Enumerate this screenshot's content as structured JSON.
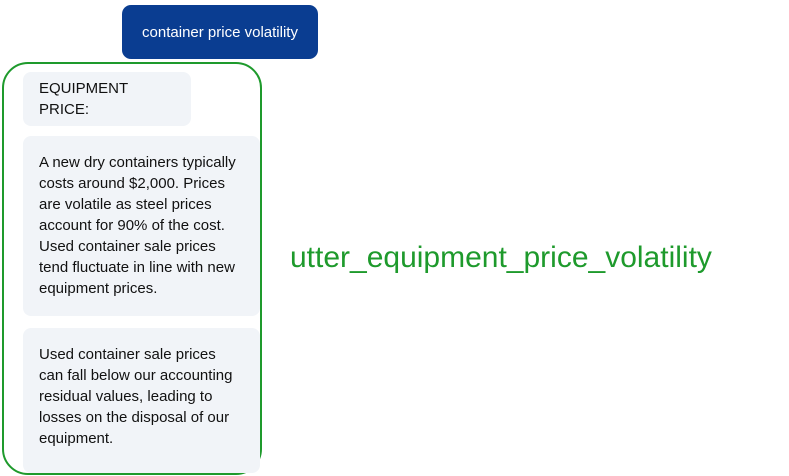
{
  "user_message": {
    "text": "container price volatility"
  },
  "bot_responses": [
    {
      "text": "EQUIPMENT PRICE:"
    },
    {
      "text": "A new dry containers typically costs around $2,000. Prices are volatile as steel prices account for 90% of the cost. Used container sale prices tend fluctuate in line with new equipment prices."
    },
    {
      "text": "Used container sale prices can fall below our accounting residual values, leading to losses on the disposal of our equipment."
    }
  ],
  "action": {
    "name": "utter_equipment_price_volatility"
  },
  "colors": {
    "user_bubble": "#0a3d91",
    "group_border": "#1e9a2c",
    "action_text": "#1e9a2c",
    "bot_bubble": "#f1f4f8"
  }
}
